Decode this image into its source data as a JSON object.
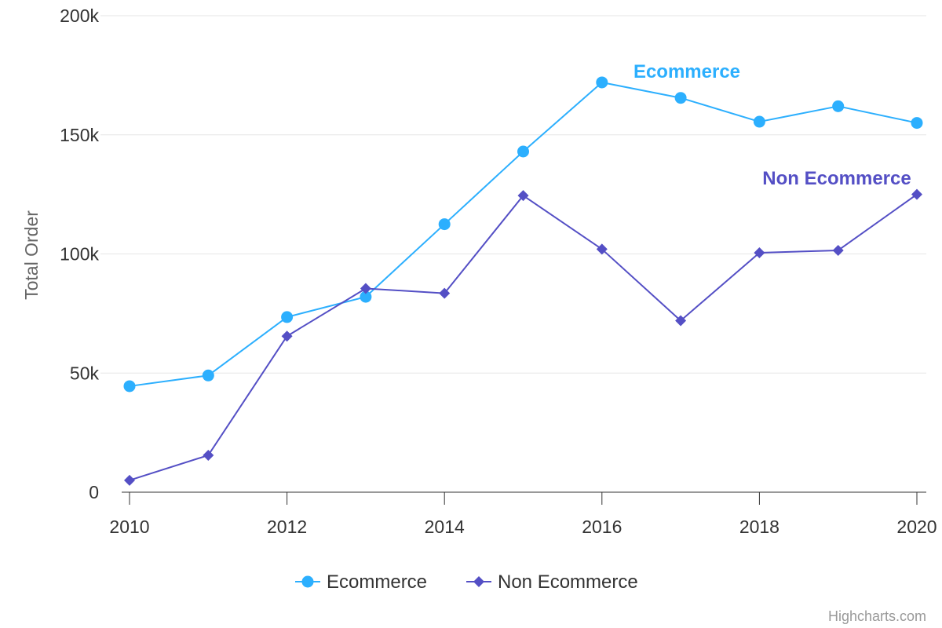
{
  "chart_data": {
    "type": "line",
    "title": "",
    "xlabel": "",
    "ylabel": "Total Order",
    "x": [
      2010,
      2011,
      2012,
      2013,
      2014,
      2015,
      2016,
      2017,
      2018,
      2019,
      2020
    ],
    "x_tick_labels": [
      "2010",
      "2012",
      "2014",
      "2016",
      "2018",
      "2020"
    ],
    "y_tick_labels": [
      "0",
      "50k",
      "100k",
      "150k",
      "200k"
    ],
    "ylim": [
      0,
      200000
    ],
    "grid": true,
    "legend_position": "bottom-center",
    "series": [
      {
        "name": "Ecommerce",
        "color": "#2caffe",
        "marker": "circle",
        "values": [
          44500,
          49000,
          73500,
          82000,
          112500,
          143000,
          172000,
          165500,
          155500,
          162000,
          155000
        ]
      },
      {
        "name": "Non Ecommerce",
        "color": "#544fc5",
        "marker": "diamond",
        "values": [
          5000,
          15500,
          65500,
          85500,
          83500,
          124500,
          102000,
          72000,
          100500,
          101500,
          125000
        ]
      }
    ],
    "annotations": [
      "Ecommerce",
      "Non Ecommerce"
    ]
  },
  "credits": "Highcharts.com"
}
